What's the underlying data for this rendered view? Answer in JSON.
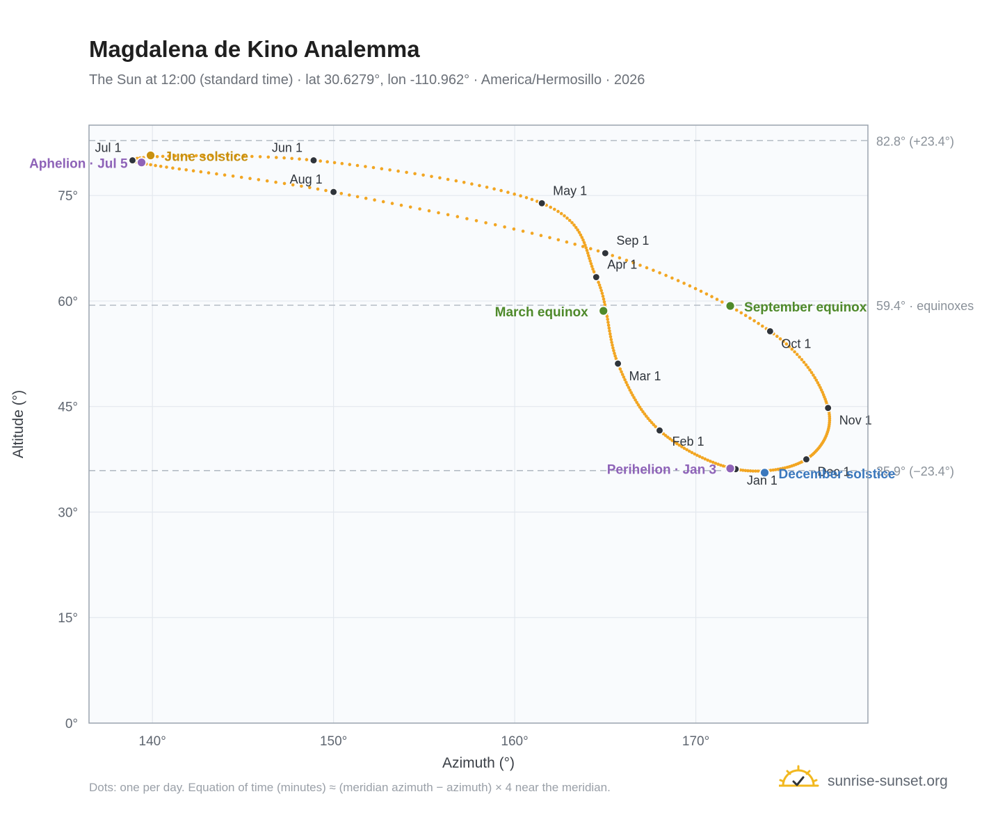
{
  "header": {
    "title": "Magdalena de Kino Analemma",
    "subtitle": "The Sun at 12:00 (standard time) · lat 30.6279°, lon -110.962° · America/Hermosillo · 2026"
  },
  "footer": {
    "note": "Dots: one per day. Equation of time (minutes) ≈ (meridian azimuth − azimuth) × 4 near the meridian.",
    "brand": "sunrise-sunset.org"
  },
  "colors": {
    "analemma": "#f2a623",
    "month_dot": "#2f343b",
    "equinox": "#4f8a2b",
    "june_solstice": "#c8900f",
    "december_solstice": "#3b78bd",
    "perihelion_aphelion": "#8e63b8",
    "plot_bg": "#f9fbfd",
    "grid": "#e3e8ee",
    "reference_line": "#b5bcc5",
    "axis_frame": "#9aa3ae",
    "brand_sun": "#f2b81f"
  },
  "chart_data": {
    "type": "scatter",
    "xlabel": "Azimuth (°)",
    "ylabel": "Altitude (°)",
    "xlim": [
      136.5,
      179.5
    ],
    "ylim": [
      0,
      85
    ],
    "xticks": [
      140,
      150,
      160,
      170
    ],
    "xtick_labels": [
      "140°",
      "150°",
      "160°",
      "170°"
    ],
    "yticks": [
      0,
      15,
      30,
      45,
      60,
      75
    ],
    "ytick_labels": [
      "0°",
      "15°",
      "30°",
      "45°",
      "60°",
      "75°"
    ],
    "grid": true,
    "reference_lines": [
      {
        "y": 82.8,
        "label": "82.8° (+23.4°)"
      },
      {
        "y": 59.4,
        "label": "59.4° · equinoxes"
      },
      {
        "y": 35.9,
        "label": "35.9° (−23.4°)"
      }
    ],
    "month_points": [
      {
        "label": "Jan 1",
        "azimuth": 172.2,
        "altitude": 36.1
      },
      {
        "label": "Feb 1",
        "azimuth": 168.0,
        "altitude": 41.6
      },
      {
        "label": "Mar 1",
        "azimuth": 165.7,
        "altitude": 51.1
      },
      {
        "label": "Apr 1",
        "azimuth": 164.5,
        "altitude": 63.4
      },
      {
        "label": "May 1",
        "azimuth": 161.5,
        "altitude": 73.9
      },
      {
        "label": "Jun 1",
        "azimuth": 148.9,
        "altitude": 80.0
      },
      {
        "label": "Jul 1",
        "azimuth": 138.9,
        "altitude": 80.0
      },
      {
        "label": "Aug 1",
        "azimuth": 150.0,
        "altitude": 75.5
      },
      {
        "label": "Sep 1",
        "azimuth": 165.0,
        "altitude": 66.8
      },
      {
        "label": "Oct 1",
        "azimuth": 174.1,
        "altitude": 55.7
      },
      {
        "label": "Nov 1",
        "azimuth": 177.3,
        "altitude": 44.8
      },
      {
        "label": "Dec 1",
        "azimuth": 176.1,
        "altitude": 37.5
      }
    ],
    "events": [
      {
        "label": "March equinox",
        "azimuth": 164.9,
        "altitude": 58.6
      },
      {
        "label": "June solstice",
        "azimuth": 139.9,
        "altitude": 80.7
      },
      {
        "label": "September equinox",
        "azimuth": 171.9,
        "altitude": 59.3
      },
      {
        "label": "December solstice",
        "azimuth": 173.8,
        "altitude": 35.6
      },
      {
        "label": "Perihelion · Jan 3",
        "azimuth": 171.9,
        "altitude": 36.2
      },
      {
        "label": "Aphelion · Jul 5",
        "azimuth": 139.4,
        "altitude": 79.7
      }
    ]
  }
}
